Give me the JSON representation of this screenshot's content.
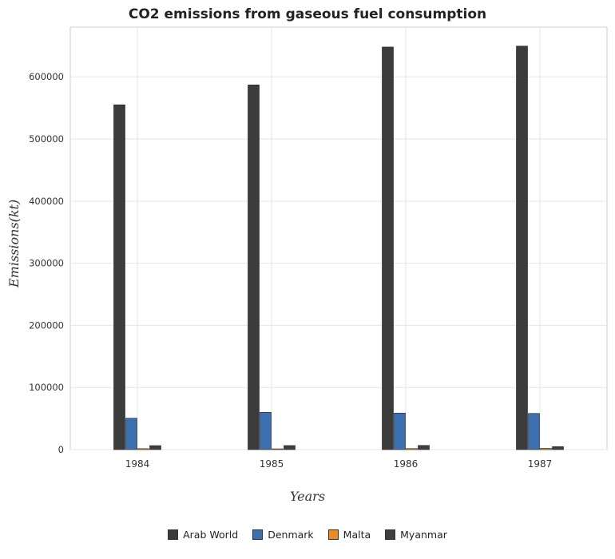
{
  "chart_data": {
    "type": "bar",
    "title": "CO2 emissions from gaseous fuel consumption",
    "xlabel": "Years",
    "ylabel": "Emissions(kt)",
    "categories": [
      "1984",
      "1985",
      "1986",
      "1987"
    ],
    "ylim": [
      0,
      680000
    ],
    "yticks": [
      0,
      100000,
      200000,
      300000,
      400000,
      500000,
      600000
    ],
    "ytick_labels": [
      "0",
      "100000",
      "200000",
      "300000",
      "400000",
      "500000",
      "600000"
    ],
    "grid": true,
    "legend_position": "bottom",
    "series": [
      {
        "name": "Arab World",
        "color": "#3b3b3b",
        "values": [
          555000,
          587000,
          648000,
          649500
        ]
      },
      {
        "name": "Denmark",
        "color": "#3a6fb0",
        "values": [
          50500,
          60000,
          58800,
          58200
        ]
      },
      {
        "name": "Malta",
        "color": "#f08a1c",
        "values": [
          1500,
          1200,
          1600,
          2000
        ]
      },
      {
        "name": "Myanmar",
        "color": "#3f3f3f",
        "values": [
          6400,
          6500,
          6700,
          4800
        ]
      }
    ]
  }
}
